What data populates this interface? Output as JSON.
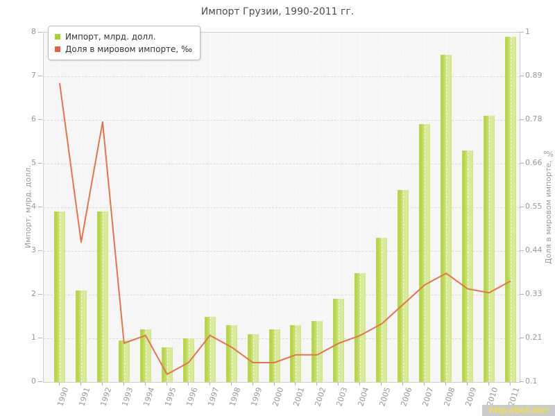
{
  "title": "Импорт Грузии, 1990-2011 гг.",
  "legend": {
    "items": [
      {
        "label": "Импорт, млрд. долл.",
        "color": "#a7d129"
      },
      {
        "label": "Доля в мировом импорте, ‰",
        "color": "#e0633c"
      }
    ]
  },
  "watermark": {
    "text": "http://be5.biz/"
  },
  "chart_data": {
    "type": "combo",
    "title": "Импорт Грузии, 1990-2011 гг.",
    "categories": [
      "1990",
      "1991",
      "1992",
      "1993",
      "1994",
      "1995",
      "1996",
      "1997",
      "1998",
      "1999",
      "2000",
      "2001",
      "2002",
      "2003",
      "2004",
      "2005",
      "2006",
      "2007",
      "2008",
      "2009",
      "2010",
      "2011"
    ],
    "series": [
      {
        "name": "Импорт, млрд. долл.",
        "type": "bar",
        "axis": "left",
        "colors": {
          "dark": "#b6d547",
          "light": "#d8eb9b",
          "edge": "#cfe383"
        },
        "values": [
          3.9,
          2.1,
          3.9,
          0.95,
          1.2,
          0.8,
          1.0,
          1.5,
          1.3,
          1.1,
          1.2,
          1.3,
          1.4,
          1.9,
          2.5,
          3.3,
          4.4,
          5.9,
          7.5,
          5.3,
          6.1,
          7.9
        ]
      },
      {
        "name": "Доля в мировом импорте, ‰",
        "type": "line",
        "axis": "right",
        "color": "#e4744b",
        "values": [
          0.87,
          0.46,
          0.77,
          0.2,
          0.22,
          0.12,
          0.15,
          0.22,
          0.19,
          0.15,
          0.15,
          0.17,
          0.17,
          0.2,
          0.22,
          0.25,
          0.3,
          0.35,
          0.38,
          0.34,
          0.33,
          0.36
        ]
      }
    ],
    "left_axis": {
      "label": "Импорт, млрд. долл.",
      "range": [
        0,
        8
      ],
      "ticks": [
        "0",
        "1",
        "2",
        "3",
        "4",
        "5",
        "6",
        "7",
        "8"
      ]
    },
    "right_axis": {
      "label": "Доля в мировом импорте, ‰",
      "range": [
        0.1,
        1
      ],
      "ticks": [
        "0.1",
        "0.21",
        "0.33",
        "0.44",
        "0.55",
        "0.66",
        "0.78",
        "0.89",
        "1"
      ]
    },
    "grid": true,
    "legend_position": "top-left"
  }
}
